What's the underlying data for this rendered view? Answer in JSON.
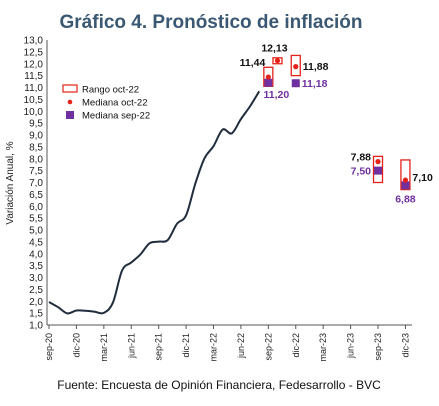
{
  "chart_data": {
    "type": "line",
    "title": "Gráfico 4. Pronóstico de inflación",
    "ylabel": "Variación Anual, %",
    "xlabel": "",
    "ylim": [
      1.0,
      13.0
    ],
    "yticks": [
      "1,0",
      "1,5",
      "2,0",
      "2,5",
      "3,0",
      "3,5",
      "4,0",
      "4,5",
      "5,0",
      "5,5",
      "6,0",
      "6,5",
      "7,0",
      "7,5",
      "8,0",
      "8,5",
      "9,0",
      "9,5",
      "10,0",
      "10,5",
      "11,0",
      "11,5",
      "12,0",
      "12,5",
      "13,0"
    ],
    "xticks": [
      "sep-20",
      "dic-20",
      "mar-21",
      "jun-21",
      "sep-21",
      "dic-21",
      "mar-22",
      "jun-22",
      "sep-22",
      "dic-22",
      "mar-23",
      "jun-23",
      "sep-23",
      "dic-23"
    ],
    "grid": false,
    "legend_position": "center-right",
    "legend": [
      {
        "name": "Rango oct-22",
        "marker": "rect-outline",
        "color": "#e32219"
      },
      {
        "name": "Mediana oct-22",
        "marker": "circle",
        "color": "#e32219"
      },
      {
        "name": "Mediana sep-22",
        "marker": "square",
        "color": "#7030a0"
      }
    ],
    "series": [
      {
        "kind": "line",
        "color": "#1f2d3d",
        "x": [
          "sep-20",
          "oct-20",
          "nov-20",
          "dic-20",
          "ene-21",
          "feb-21",
          "mar-21",
          "abr-21",
          "may-21",
          "jun-21",
          "jul-21",
          "ago-21",
          "sep-21",
          "oct-21",
          "nov-21",
          "dic-21",
          "ene-22",
          "feb-22",
          "mar-22",
          "abr-22",
          "may-22",
          "jun-22",
          "jul-22",
          "ago-22"
        ],
        "values": [
          1.97,
          1.75,
          1.49,
          1.61,
          1.6,
          1.56,
          1.51,
          1.95,
          3.3,
          3.63,
          3.97,
          4.44,
          4.51,
          4.58,
          5.26,
          5.62,
          6.94,
          8.01,
          8.53,
          9.23,
          9.07,
          9.67,
          10.21,
          10.84
        ]
      },
      {
        "kind": "range",
        "name": "Rango oct-22",
        "points": [
          {
            "x": "sep-22",
            "low": 11.05,
            "high": 11.85
          },
          {
            "x": "oct-22",
            "low": 12.0,
            "high": 12.25
          },
          {
            "x": "dic-22",
            "low": 11.5,
            "high": 12.35
          },
          {
            "x": "sep-23",
            "low": 7.0,
            "high": 8.1
          },
          {
            "x": "dic-23",
            "low": 6.7,
            "high": 7.95
          }
        ]
      },
      {
        "kind": "points",
        "name": "Mediana oct-22",
        "marker": "circle",
        "color": "#e32219",
        "points": [
          {
            "x": "sep-22",
            "y": 11.44,
            "label": "11,44"
          },
          {
            "x": "oct-22",
            "y": 12.13,
            "label": "12,13"
          },
          {
            "x": "dic-22",
            "y": 11.88,
            "label": "11,88"
          },
          {
            "x": "sep-23",
            "y": 7.88,
            "label": "7,88"
          },
          {
            "x": "dic-23",
            "y": 7.1,
            "label": "7,10"
          }
        ]
      },
      {
        "kind": "points",
        "name": "Mediana sep-22",
        "marker": "square",
        "color": "#7030a0",
        "points": [
          {
            "x": "sep-22",
            "y": 11.2,
            "label": "11,20"
          },
          {
            "x": "dic-22",
            "y": 11.18,
            "label": "11,18"
          },
          {
            "x": "sep-23",
            "y": 7.5,
            "label": "7,50"
          },
          {
            "x": "dic-23",
            "y": 6.88,
            "label": "6,88"
          }
        ]
      }
    ],
    "source": "Fuente: Encuesta de Opinión Financiera, Fedesarrollo - BVC"
  }
}
